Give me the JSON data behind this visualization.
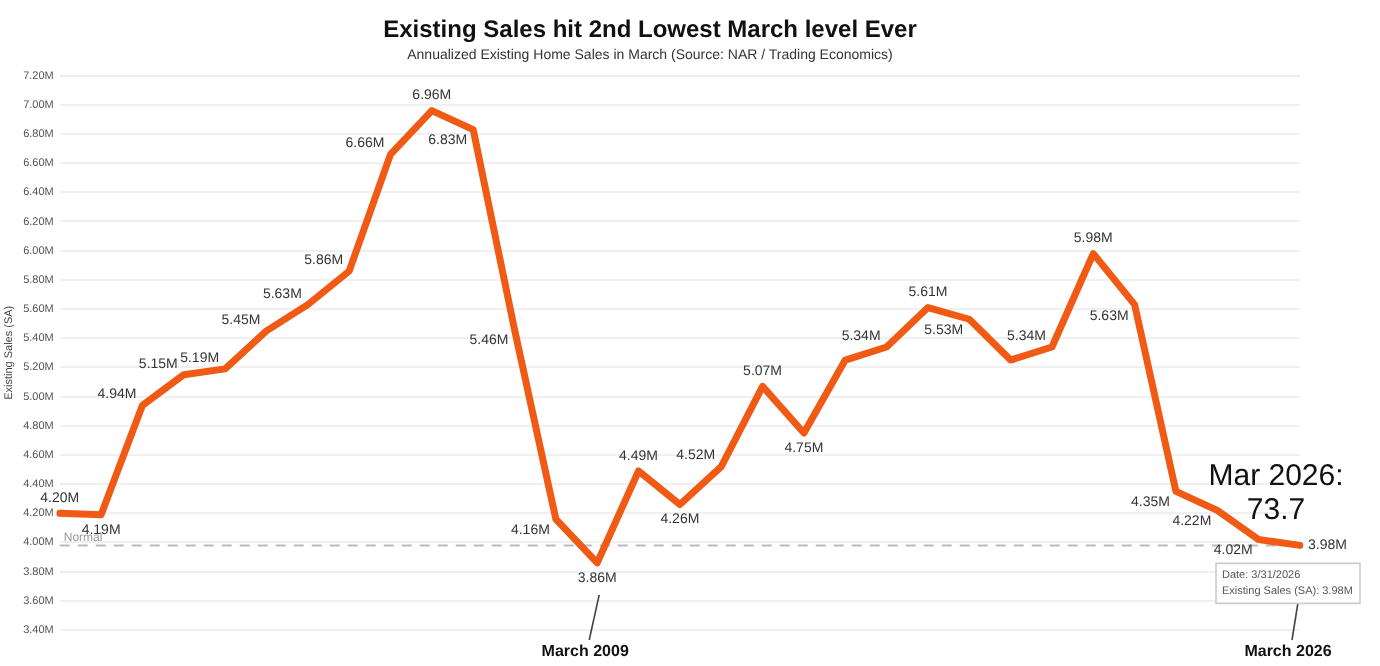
{
  "chart_data": {
    "type": "line",
    "title": "Existing Sales hit 2nd Lowest March level Ever",
    "subtitle": "Annualized Existing Home Sales in March (Source: NAR / Trading Economics)",
    "ylabel": "Existing Sales (SA)",
    "categories": [
      null,
      null,
      null,
      null,
      null,
      null,
      null,
      null,
      null,
      null,
      null,
      null,
      null,
      null,
      null,
      null,
      null,
      null,
      null,
      null,
      null,
      null,
      null,
      null,
      null,
      null,
      null,
      null,
      null,
      null,
      null
    ],
    "series": [
      {
        "color": "#f05a14",
        "values": [
          4.2,
          4.19,
          4.94,
          5.15,
          5.19,
          5.45,
          5.63,
          5.86,
          6.66,
          6.96,
          6.83,
          5.46,
          4.16,
          3.86,
          4.49,
          4.26,
          4.52,
          5.07,
          4.75,
          5.25,
          5.34,
          5.61,
          5.53,
          5.25,
          5.34,
          5.98,
          5.63,
          4.35,
          4.22,
          4.02,
          3.98
        ],
        "value_labels": [
          "4.20M",
          "4.19M",
          "4.94M",
          "5.15M",
          "5.19M",
          "5.45M",
          "5.63M",
          "5.86M",
          "6.66M",
          "6.96M",
          "6.83M",
          "5.46M",
          "4.16M",
          "3.86M",
          "4.49M",
          "4.26M",
          "4.52M",
          "5.07M",
          "4.75M",
          null,
          "5.34M",
          "5.61M",
          "5.53M",
          null,
          "5.34M",
          "5.98M",
          "5.63M",
          "4.35M",
          "4.22M",
          "4.02M",
          "3.98M"
        ]
      }
    ],
    "ylim": [
      3.4,
      7.2
    ],
    "yticks": [
      {
        "value": 3.4,
        "label": "3.40M"
      },
      {
        "value": 3.6,
        "label": "3.60M"
      },
      {
        "value": 3.8,
        "label": "3.80M"
      },
      {
        "value": 4.0,
        "label": "4.00M"
      },
      {
        "value": 4.2,
        "label": "4.20M"
      },
      {
        "value": 4.4,
        "label": "4.40M"
      },
      {
        "value": 4.6,
        "label": "4.60M"
      },
      {
        "value": 4.8,
        "label": "4.80M"
      },
      {
        "value": 5.0,
        "label": "5.00M"
      },
      {
        "value": 5.2,
        "label": "5.20M"
      },
      {
        "value": 5.4,
        "label": "5.40M"
      },
      {
        "value": 5.6,
        "label": "5.60M"
      },
      {
        "value": 5.8,
        "label": "5.80M"
      },
      {
        "value": 6.0,
        "label": "6.00M"
      },
      {
        "value": 6.2,
        "label": "6.20M"
      },
      {
        "value": 6.4,
        "label": "6.40M"
      },
      {
        "value": 6.6,
        "label": "6.60M"
      },
      {
        "value": 6.8,
        "label": "6.80M"
      },
      {
        "value": 7.0,
        "label": "7.00M"
      },
      {
        "value": 7.2,
        "label": "7.20M"
      }
    ],
    "ref_lines": [
      {
        "axis": "y",
        "value": 3.98,
        "label": "Normal",
        "color": "#bbbbbb",
        "line_style": "dashed"
      }
    ],
    "annotations": [
      "March 2009",
      "March 2026",
      "Mar 2026: 73.7",
      "Date: 3/31/2026",
      "Existing Sales (SA): 3.98M"
    ],
    "grid": "y",
    "legend": false,
    "marker": "none",
    "line_style": "solid"
  }
}
